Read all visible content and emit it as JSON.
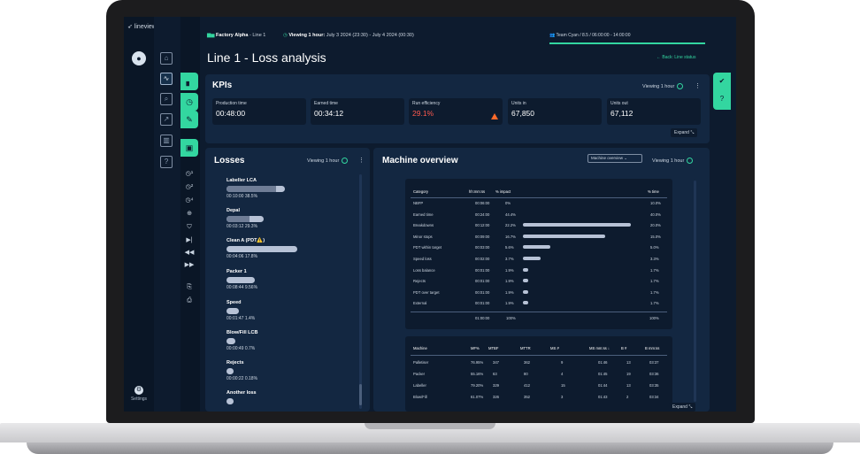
{
  "app": {
    "logo_text": "lineview"
  },
  "header": {
    "factory_prefix": "Factory Alpha",
    "factory_suffix": " - Line 1",
    "viewing_prefix": "Viewing 1 hour:",
    "viewing_range": " July 3 2024 (23:30) - July 4 2024 (00:30)",
    "team": "Team Cyan  /  8.5  /  06:00:00 - 14:00:00"
  },
  "page": {
    "title": "Line 1 - Loss analysis",
    "back_label": "Back: Line status"
  },
  "sidebar": {
    "settings_label": "Settings"
  },
  "kpis": {
    "title": "KPIs",
    "viewing": "Viewing 1 hour",
    "expand": "Expand",
    "items": [
      {
        "label": "Production time",
        "value": "00:48:00"
      },
      {
        "label": "Earned time",
        "value": "00:34:12"
      },
      {
        "label": "Run efficiency",
        "value": "29.1%"
      },
      {
        "label": "Units in",
        "value": "67,850"
      },
      {
        "label": "Units out",
        "value": "67,112"
      }
    ]
  },
  "losses": {
    "title": "Losses",
    "viewing": "Viewing 1 hour",
    "items": [
      {
        "name": "Labeller LCA",
        "value": "00:10:00   38.5%",
        "fraction": 0.82
      },
      {
        "name": "Depal",
        "value": "00:03:12   29.3%",
        "fraction": 0.52
      },
      {
        "name": "Clean A  (PDT⚠️)",
        "value": "00:04:06   17.8%",
        "fraction": 1.0
      },
      {
        "name": "Packer 1",
        "value": "00:08:44   9.56%",
        "fraction": 0.4
      },
      {
        "name": "Speed",
        "value": "00:01:47   1.4%",
        "fraction": 0.17
      },
      {
        "name": "Blow/Fill LCB",
        "value": "00:00:49   0.7%",
        "fraction": 0.13
      },
      {
        "name": "Rejects",
        "value": "00:00:22   0.18%",
        "fraction": 0.1
      },
      {
        "name": "Another loss",
        "value": "",
        "fraction": 0.1
      }
    ]
  },
  "machine_overview": {
    "title": "Machine overview",
    "select_value": "Machine overview",
    "viewing": "Viewing 1 hour",
    "expand": "Expand",
    "category_table": {
      "headers": [
        "Category",
        "hh:mm:ss",
        "% impact",
        "% time"
      ],
      "rows": [
        {
          "category": "NBFP",
          "time": "00:06:00",
          "impact": "0%",
          "pct_time": "10.0%",
          "bar": 0
        },
        {
          "category": "Earned time",
          "time": "00:24:00",
          "impact": "44.4%",
          "pct_time": "40.0%",
          "bar": 0
        },
        {
          "category": "Breakdowns",
          "time": "00:12:00",
          "impact": "22.2%",
          "pct_time": "20.0%",
          "bar": 1.0
        },
        {
          "category": "Minor stops",
          "time": "00:09:00",
          "impact": "16.7%",
          "pct_time": "15.0%",
          "bar": 0.76
        },
        {
          "category": "PDT within target",
          "time": "00:03:00",
          "impact": "5.6%",
          "pct_time": "5.0%",
          "bar": 0.25
        },
        {
          "category": "Speed loss",
          "time": "00:02:00",
          "impact": "3.7%",
          "pct_time": "3.3%",
          "bar": 0.16
        },
        {
          "category": "Loss balance",
          "time": "00:01:00",
          "impact": "1.9%",
          "pct_time": "1.7%",
          "bar": 0.05
        },
        {
          "category": "Rejects",
          "time": "00:01:00",
          "impact": "1.9%",
          "pct_time": "1.7%",
          "bar": 0.05
        },
        {
          "category": "PDT over target",
          "time": "00:01:00",
          "impact": "1.9%",
          "pct_time": "1.7%",
          "bar": 0.05
        },
        {
          "category": "External",
          "time": "00:01:00",
          "impact": "1.9%",
          "pct_time": "1.7%",
          "bar": 0.05
        }
      ],
      "total": {
        "time": "01:00:00",
        "impact": "100%",
        "pct_time": "100%"
      }
    },
    "machine_table": {
      "headers": [
        "Machine",
        "MF%",
        "MTBF",
        "MTTR",
        "MS #",
        "MS mm:ss ↓",
        "B #",
        "B mm:ss"
      ],
      "rows": [
        {
          "machine": "Palletiser",
          "mf": "76.95%",
          "mtbf": "347",
          "mttr": "362",
          "ms_n": "9",
          "ms_t": "01:46",
          "b_n": "13",
          "b_t": "03:37"
        },
        {
          "machine": "Packer",
          "mf": "55.16%",
          "mtbf": "63",
          "mttr": "80",
          "ms_n": "4",
          "ms_t": "01:45",
          "b_n": "19",
          "b_t": "03:36"
        },
        {
          "machine": "Labeller",
          "mf": "79.20%",
          "mtbf": "329",
          "mttr": "412",
          "ms_n": "15",
          "ms_t": "01:44",
          "b_n": "13",
          "b_t": "03:35"
        },
        {
          "machine": "Blow/Fill",
          "mf": "61.07%",
          "mtbf": "326",
          "mttr": "352",
          "ms_n": "3",
          "ms_t": "01:43",
          "b_n": "2",
          "b_t": "03:34"
        }
      ]
    }
  },
  "colors": {
    "accent": "#33d6a0",
    "background": "#0d1b2e",
    "panel": "#132741",
    "alert": "#ff5a4e"
  }
}
